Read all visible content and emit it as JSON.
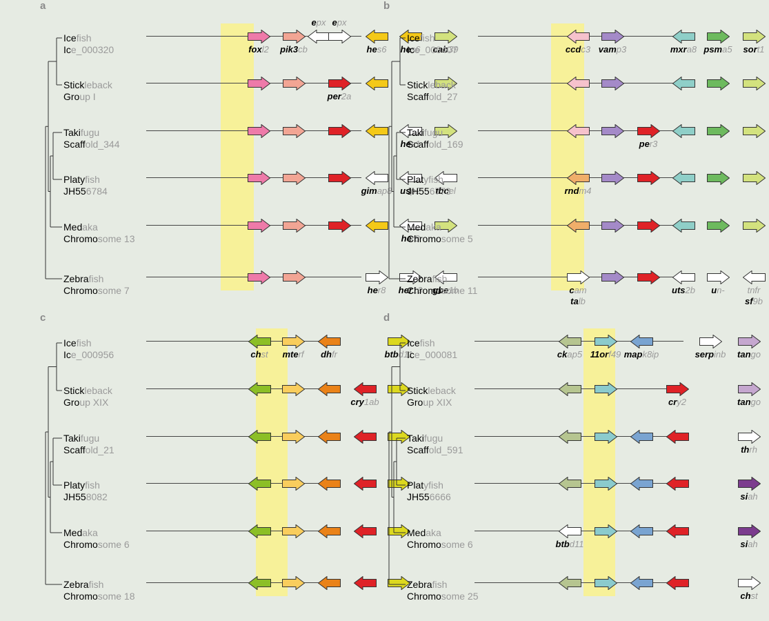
{
  "colors": {
    "pink": "#ee7aa9",
    "salmon": "#f2a594",
    "red": "#df2227",
    "yellow": "#f4c918",
    "lightgreen": "#d3e27e",
    "white": "#ffffff",
    "lightpink": "#f6c2cc",
    "purple": "#a48ac8",
    "teal": "#8fcfc8",
    "green": "#6dba5e",
    "orange": "#f0ae6a",
    "olive": "#8cbf26",
    "lightorange": "#f9cd5d",
    "darkorange": "#ea8218",
    "lime": "#dcd81f",
    "sage": "#b6c590",
    "cyan": "#8bcbcd",
    "blue": "#7aa4d1",
    "lavender": "#c5a7cf",
    "darkpurple": "#7c3c8e",
    "highlight": "#f7f199",
    "background": "#e6ebe3"
  },
  "panels": [
    {
      "letter": "a",
      "species": [
        {
          "l1a": "Ice",
          "l1b": "fish",
          "l2a": "Ic",
          "l2b": "e_000320",
          "genes": [
            {
              "c": "pink",
              "d": "r",
              "la": "fox",
              "lb": "l2"
            },
            {
              "c": "salmon",
              "d": "r",
              "la": "pik3",
              "lb": "cb"
            },
            {
              "c": "white",
              "d": "l",
              "ta": "e",
              "tb": "px"
            },
            {
              "c": "white",
              "d": "r",
              "ta": "e",
              "tb": "px"
            },
            {
              "c": "yellow",
              "d": "l",
              "la": "he",
              "lb": "s6"
            },
            {
              "c": "yellow",
              "d": "l",
              "la": "he",
              "lb": "s6"
            },
            {
              "c": "lightgreen",
              "d": "r",
              "la": "cab",
              "lb": "39"
            }
          ]
        },
        {
          "l1a": "Stick",
          "l1b": "leback",
          "l2a": "Gro",
          "l2b": "up I",
          "genes": [
            {
              "c": "pink",
              "d": "r"
            },
            {
              "c": "salmon",
              "d": "r"
            },
            {
              "skip": true
            },
            {
              "c": "red",
              "d": "r",
              "la": "per",
              "lb": "2a"
            },
            {
              "c": "yellow",
              "d": "l"
            },
            {
              "skip": true
            },
            {
              "c": "lightgreen",
              "d": "r"
            }
          ]
        },
        {
          "l1a": "Taki",
          "l1b": "fugu",
          "l2a": "Scaff",
          "l2b": "old_344",
          "genes": [
            {
              "c": "pink",
              "d": "r"
            },
            {
              "c": "salmon",
              "d": "r"
            },
            {
              "skip": true
            },
            {
              "c": "red",
              "d": "r"
            },
            {
              "c": "yellow",
              "d": "l"
            },
            {
              "c": "white",
              "d": "l",
              "la": "he",
              "lb": "s1"
            },
            {
              "c": "lightgreen",
              "d": "r"
            }
          ]
        },
        {
          "l1a": "Platy",
          "l1b": "fish",
          "l2a": "JH55",
          "l2b": "6784",
          "genes": [
            {
              "c": "pink",
              "d": "r"
            },
            {
              "c": "salmon",
              "d": "r"
            },
            {
              "skip": true
            },
            {
              "c": "red",
              "d": "r"
            },
            {
              "c": "white",
              "d": "l",
              "la": "gim",
              "lb": "ap8"
            },
            {
              "c": "white",
              "d": "l",
              "la": "us",
              "lb": "p2"
            },
            {
              "c": "white",
              "d": "l",
              "la": "tbc",
              "lb": "el"
            }
          ]
        },
        {
          "l1a": "Med",
          "l1b": "aka",
          "l2a": "Chromo",
          "l2b": "some 13",
          "genes": [
            {
              "c": "pink",
              "d": "r"
            },
            {
              "c": "salmon",
              "d": "r"
            },
            {
              "skip": true
            },
            {
              "c": "red",
              "d": "r"
            },
            {
              "c": "yellow",
              "d": "l"
            },
            {
              "c": "white",
              "d": "l",
              "la": "he",
              "lb": "r8"
            },
            {
              "c": "lightgreen",
              "d": "r"
            }
          ]
        },
        {
          "l1a": "Zebra",
          "l1b": "fish",
          "l2a": "Chromo",
          "l2b": "some 7",
          "genes": [
            {
              "c": "pink",
              "d": "r"
            },
            {
              "c": "salmon",
              "d": "r"
            },
            {
              "skip": true
            },
            {
              "skip": true
            },
            {
              "c": "white",
              "d": "r",
              "la": "he",
              "lb": "r8"
            },
            {
              "c": "white",
              "d": "r",
              "la": "her",
              "lb": "13"
            },
            {
              "c": "white",
              "d": "l",
              "la": "gbe",
              "lb": "1b"
            }
          ]
        }
      ]
    },
    {
      "letter": "b",
      "species": [
        {
          "l1a": "Ice",
          "l1b": "fish",
          "l2a": "Ic",
          "l2b": "e_000407",
          "genes": [
            {
              "c": "lightpink",
              "d": "l",
              "la": "ccd",
              "lb": "c3"
            },
            {
              "c": "purple",
              "d": "r",
              "la": "vam",
              "lb": "p3"
            },
            {
              "skip": true
            },
            {
              "c": "teal",
              "d": "l",
              "la": "mxr",
              "lb": "a8"
            },
            {
              "c": "green",
              "d": "r",
              "la": "psm",
              "lb": "a5"
            },
            {
              "c": "lightgreen",
              "d": "r",
              "la": "sor",
              "lb": "t1"
            }
          ]
        },
        {
          "l1a": "Stick",
          "l1b": "leback",
          "l2a": "Scaff",
          "l2b": "old_27",
          "genes": [
            {
              "c": "lightpink",
              "d": "l"
            },
            {
              "c": "purple",
              "d": "r"
            },
            {
              "skip": true
            },
            {
              "c": "teal",
              "d": "l"
            },
            {
              "c": "green",
              "d": "r"
            },
            {
              "c": "lightgreen",
              "d": "r"
            }
          ]
        },
        {
          "l1a": "Taki",
          "l1b": "fugu",
          "l2a": "Scaff",
          "l2b": "old_169",
          "genes": [
            {
              "c": "lightpink",
              "d": "l"
            },
            {
              "c": "purple",
              "d": "r"
            },
            {
              "c": "red",
              "d": "r",
              "la": "pe",
              "lb": "r3"
            },
            {
              "c": "teal",
              "d": "l"
            },
            {
              "c": "green",
              "d": "r"
            },
            {
              "c": "lightgreen",
              "d": "r"
            }
          ]
        },
        {
          "l1a": "Plat",
          "l1b": "yfish",
          "l2a": "JH55",
          "l2b": "6773",
          "genes": [
            {
              "c": "orange",
              "d": "l",
              "la": "rnd",
              "lb": "m4"
            },
            {
              "c": "purple",
              "d": "r"
            },
            {
              "c": "red",
              "d": "r"
            },
            {
              "c": "teal",
              "d": "l"
            },
            {
              "c": "green",
              "d": "r"
            },
            {
              "c": "lightgreen",
              "d": "r"
            }
          ]
        },
        {
          "l1a": "Med",
          "l1b": "aka",
          "l2a": "Chromo",
          "l2b": "some 5",
          "genes": [
            {
              "c": "orange",
              "d": "l"
            },
            {
              "c": "purple",
              "d": "r"
            },
            {
              "c": "red",
              "d": "r"
            },
            {
              "c": "teal",
              "d": "l"
            },
            {
              "c": "green",
              "d": "r"
            },
            {
              "c": "lightgreen",
              "d": "r"
            }
          ]
        },
        {
          "l1a": "Zebra",
          "l1b": "fish",
          "l2a": "Chromo",
          "l2b": "some 11",
          "genes": [
            {
              "c": "white",
              "d": "r",
              "la": "c",
              "lb": "am",
              "la2": "ta",
              "lb2": "lb"
            },
            {
              "c": "purple",
              "d": "r"
            },
            {
              "c": "red",
              "d": "r"
            },
            {
              "c": "white",
              "d": "l",
              "la": "uts",
              "lb": "2b"
            },
            {
              "c": "white",
              "d": "r",
              "la": "u",
              "lb": "n-"
            },
            {
              "c": "white",
              "d": "l",
              "la": "",
              "lb": "tnfr",
              "la2": "sf",
              "lb2": "9b"
            }
          ]
        }
      ]
    },
    {
      "letter": "c",
      "species": [
        {
          "l1a": "Ice",
          "l1b": "fish",
          "l2a": "Ic",
          "l2b": "e_000956",
          "genes": [
            {
              "c": "olive",
              "d": "l",
              "la": "ch",
              "lb": "st"
            },
            {
              "c": "lightorange",
              "d": "r",
              "la": "mte",
              "lb": "rf"
            },
            {
              "c": "darkorange",
              "d": "l",
              "la": "dh",
              "lb": "fr"
            },
            {
              "skip": true
            },
            {
              "c": "lime",
              "d": "r",
              "la": "btb",
              "lb": "d11"
            }
          ]
        },
        {
          "l1a": "Stick",
          "l1b": "leback",
          "l2a": "Gro",
          "l2b": "up XIX",
          "genes": [
            {
              "c": "olive",
              "d": "l"
            },
            {
              "c": "lightorange",
              "d": "r"
            },
            {
              "c": "darkorange",
              "d": "l"
            },
            {
              "c": "red",
              "d": "l",
              "la": "cry",
              "lb": "1ab"
            },
            {
              "c": "lime",
              "d": "r"
            }
          ]
        },
        {
          "l1a": "Taki",
          "l1b": "fugu",
          "l2a": "Scaff",
          "l2b": "old_21",
          "genes": [
            {
              "c": "olive",
              "d": "l"
            },
            {
              "c": "lightorange",
              "d": "r"
            },
            {
              "c": "darkorange",
              "d": "l"
            },
            {
              "c": "red",
              "d": "l"
            },
            {
              "c": "lime",
              "d": "r"
            }
          ]
        },
        {
          "l1a": "Platy",
          "l1b": "fish",
          "l2a": "JH55",
          "l2b": "8082",
          "genes": [
            {
              "c": "olive",
              "d": "l"
            },
            {
              "c": "lightorange",
              "d": "r"
            },
            {
              "c": "darkorange",
              "d": "l"
            },
            {
              "c": "red",
              "d": "l"
            },
            {
              "c": "lime",
              "d": "r"
            }
          ]
        },
        {
          "l1a": "Med",
          "l1b": "aka",
          "l2a": "Chromo",
          "l2b": "some 6",
          "genes": [
            {
              "c": "olive",
              "d": "l"
            },
            {
              "c": "lightorange",
              "d": "r"
            },
            {
              "c": "darkorange",
              "d": "l"
            },
            {
              "c": "red",
              "d": "l"
            },
            {
              "c": "lime",
              "d": "r"
            }
          ]
        },
        {
          "l1a": "Zebra",
          "l1b": "fish",
          "l2a": "Chromo",
          "l2b": "some 18",
          "genes": [
            {
              "c": "olive",
              "d": "l"
            },
            {
              "c": "lightorange",
              "d": "r"
            },
            {
              "c": "darkorange",
              "d": "l"
            },
            {
              "c": "red",
              "d": "l"
            },
            {
              "c": "lime",
              "d": "r"
            }
          ]
        }
      ]
    },
    {
      "letter": "d",
      "species": [
        {
          "l1a": "Ice",
          "l1b": "fish",
          "l2a": "Ic",
          "l2b": "e_000081",
          "genes": [
            {
              "c": "sage",
              "d": "l",
              "la": "ck",
              "lb": "ap5"
            },
            {
              "c": "cyan",
              "d": "r",
              "la": "11or",
              "lb": "f49"
            },
            {
              "c": "blue",
              "d": "l",
              "la": "map",
              "lb": "k8ip"
            },
            {
              "skip": true
            },
            {
              "c": "white",
              "d": "r",
              "la": "serp",
              "lb": "inb"
            },
            {
              "c": "lavender",
              "d": "r",
              "la": "tan",
              "lb": "go"
            }
          ]
        },
        {
          "l1a": "Stick",
          "l1b": "leback",
          "l2a": "Gro",
          "l2b": "up XIX",
          "genes": [
            {
              "c": "sage",
              "d": "l"
            },
            {
              "c": "cyan",
              "d": "r"
            },
            {
              "skip": true
            },
            {
              "c": "red",
              "d": "r",
              "la": "cr",
              "lb": "y2"
            },
            {
              "skip": true
            },
            {
              "c": "lavender",
              "d": "r",
              "la": "tan",
              "lb": "go"
            }
          ]
        },
        {
          "l1a": "Taki",
          "l1b": "fugu",
          "l2a": "Scaff",
          "l2b": "old_591",
          "genes": [
            {
              "c": "sage",
              "d": "l"
            },
            {
              "c": "cyan",
              "d": "r"
            },
            {
              "c": "blue",
              "d": "l"
            },
            {
              "c": "red",
              "d": "l"
            },
            {
              "skip": true
            },
            {
              "c": "white",
              "d": "r",
              "la": "th",
              "lb": "rh"
            }
          ]
        },
        {
          "l1a": "Plat",
          "l1b": "yfish",
          "l2a": "JH55",
          "l2b": "6666",
          "genes": [
            {
              "c": "sage",
              "d": "l"
            },
            {
              "c": "cyan",
              "d": "r"
            },
            {
              "c": "blue",
              "d": "l"
            },
            {
              "c": "red",
              "d": "l"
            },
            {
              "skip": true
            },
            {
              "c": "darkpurple",
              "d": "r",
              "la": "si",
              "lb": "ah"
            }
          ]
        },
        {
          "l1a": "Med",
          "l1b": "aka",
          "l2a": "Chromo",
          "l2b": "some 6",
          "genes": [
            {
              "c": "white",
              "d": "l",
              "la": "btb",
              "lb": "d11"
            },
            {
              "c": "cyan",
              "d": "r"
            },
            {
              "c": "blue",
              "d": "l"
            },
            {
              "c": "red",
              "d": "l"
            },
            {
              "skip": true
            },
            {
              "c": "darkpurple",
              "d": "r",
              "la": "si",
              "lb": "ah"
            }
          ]
        },
        {
          "l1a": "Zebra",
          "l1b": "fish",
          "l2a": "Chromo",
          "l2b": "some 25",
          "genes": [
            {
              "c": "sage",
              "d": "l"
            },
            {
              "c": "cyan",
              "d": "r"
            },
            {
              "c": "blue",
              "d": "l"
            },
            {
              "c": "red",
              "d": "l"
            },
            {
              "skip": true
            },
            {
              "c": "white",
              "d": "r",
              "la": "ch",
              "lb": "st"
            }
          ]
        }
      ]
    }
  ]
}
